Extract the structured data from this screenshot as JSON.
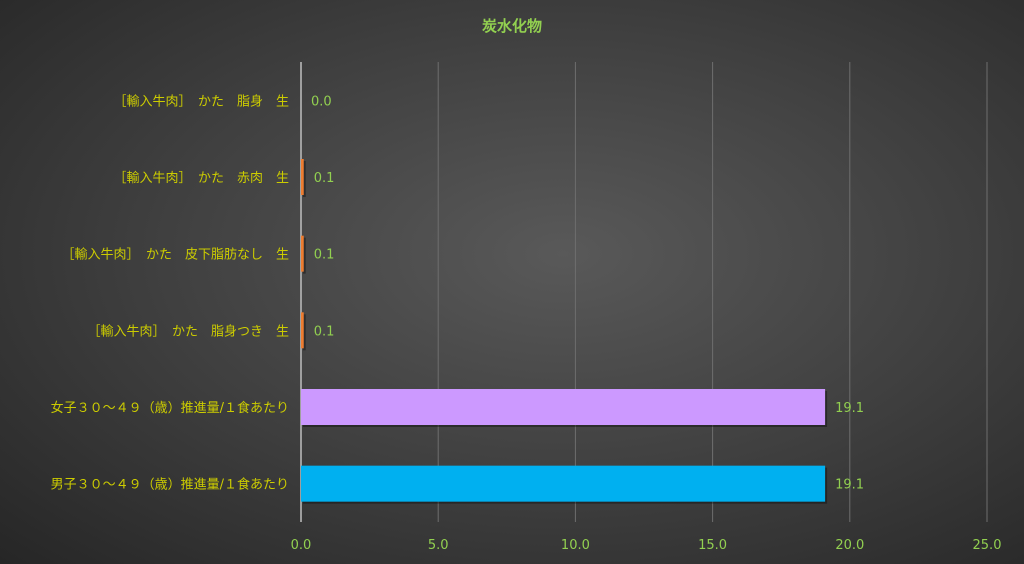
{
  "chart_data": {
    "type": "bar",
    "orientation": "horizontal",
    "title": "炭水化物",
    "categories": [
      "［輸入牛肉］　かた　脂身　生",
      "［輸入牛肉］　かた　赤肉　生",
      "［輸入牛肉］　かた　皮下脂肪なし　生",
      "［輸入牛肉］　かた　脂身つき　生",
      "女子３０～４９（歳）推進量/１食あたり",
      "男子３０～４９（歳）推進量/１食あたり"
    ],
    "values": [
      0.0,
      0.1,
      0.1,
      0.1,
      19.1,
      19.1
    ],
    "data_labels": [
      "0.0",
      "0.1",
      "0.1",
      "0.1",
      "19.1",
      "19.1"
    ],
    "bar_colors": [
      "#ED7D31",
      "#ED7D31",
      "#ED7D31",
      "#ED7D31",
      "#CC99FF",
      "#00B0F0"
    ],
    "xlim": [
      0,
      25
    ],
    "xticks": [
      "0.0",
      "5.0",
      "10.0",
      "15.0",
      "20.0",
      "25.0"
    ],
    "grid": true,
    "colors": {
      "title": "#92D050",
      "category_label": "#CCCC00",
      "tick_label": "#92D050",
      "data_label": "#92D050"
    }
  }
}
